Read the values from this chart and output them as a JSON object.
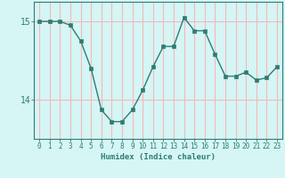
{
  "x": [
    0,
    1,
    2,
    3,
    4,
    5,
    6,
    7,
    8,
    9,
    10,
    11,
    12,
    13,
    14,
    15,
    16,
    17,
    18,
    19,
    20,
    21,
    22,
    23
  ],
  "y": [
    15.0,
    15.0,
    15.0,
    14.95,
    14.75,
    14.4,
    13.87,
    13.72,
    13.72,
    13.87,
    14.12,
    14.42,
    14.68,
    14.68,
    15.05,
    14.88,
    14.88,
    14.58,
    14.3,
    14.3,
    14.35,
    14.25,
    14.28,
    14.42
  ],
  "line_color": "#2d7d74",
  "marker_color": "#2d7d74",
  "bg_color": "#d6f5f5",
  "grid_color": "#f5b8b8",
  "axis_color": "#2d7d74",
  "xlabel": "Humidex (Indice chaleur)",
  "yticks": [
    14,
    15
  ],
  "ylim": [
    13.5,
    15.25
  ],
  "xlim": [
    -0.5,
    23.5
  ]
}
